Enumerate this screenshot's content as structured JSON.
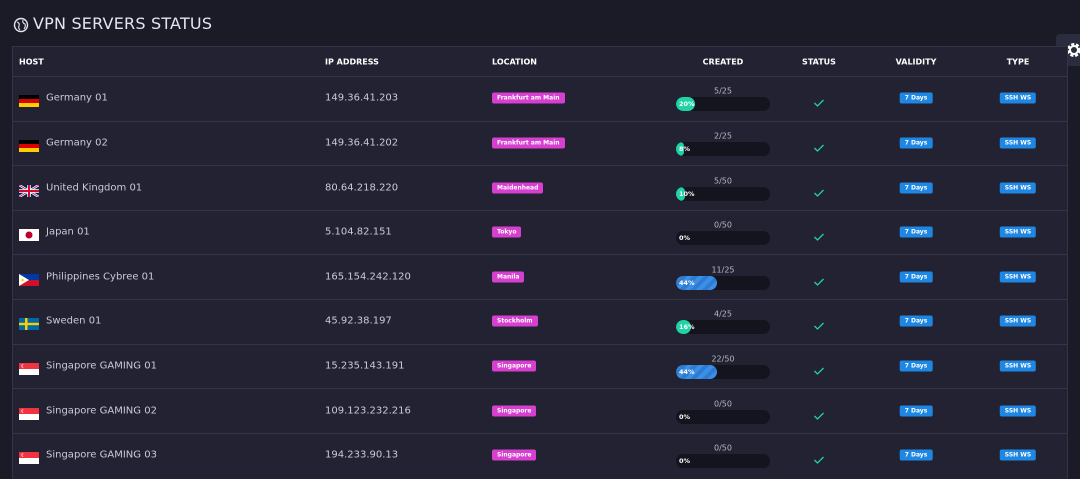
{
  "header": {
    "title": "VPN SERVERS STATUS"
  },
  "table": {
    "columns": [
      "HOST",
      "IP ADDRESS",
      "LOCATION",
      "CREATED",
      "STATUS",
      "VALIDITY",
      "TYPE"
    ],
    "rows": [
      {
        "host": "Germany 01",
        "ip": "149.36.41.203",
        "location": "Frankfurt am Main",
        "created": "5/25",
        "progress": {
          "value": 20,
          "label": "20%"
        },
        "validity": "7 Days",
        "type": "SSH WS"
      },
      {
        "host": "Germany 02",
        "ip": "149.36.41.202",
        "location": "Frankfurt am Main",
        "created": "2/25",
        "progress": {
          "value": 8,
          "label": "8%"
        },
        "validity": "7 Days",
        "type": "SSH WS"
      },
      {
        "host": "United Kingdom 01",
        "ip": "80.64.218.220",
        "location": "Maidenhead",
        "created": "5/50",
        "progress": {
          "value": 10,
          "label": "10%"
        },
        "validity": "7 Days",
        "type": "SSH WS"
      },
      {
        "host": "Japan 01",
        "ip": "5.104.82.151",
        "location": "Tokyo",
        "created": "0/50",
        "progress": {
          "value": 0,
          "label": "0%"
        },
        "validity": "7 Days",
        "type": "SSH WS"
      },
      {
        "host": "Philippines Cybree 01",
        "ip": "165.154.242.120",
        "location": "Manila",
        "created": "11/25",
        "progress": {
          "value": 44,
          "label": "44%"
        },
        "validity": "7 Days",
        "type": "SSH WS"
      },
      {
        "host": "Sweden 01",
        "ip": "45.92.38.197",
        "location": "Stockholm",
        "created": "4/25",
        "progress": {
          "value": 16,
          "label": "16%"
        },
        "validity": "7 Days",
        "type": "SSH WS"
      },
      {
        "host": "Singapore GAMING 01",
        "ip": "15.235.143.191",
        "location": "Singapore",
        "created": "22/50",
        "progress": {
          "value": 44,
          "label": "44%"
        },
        "validity": "7 Days",
        "type": "SSH WS"
      },
      {
        "host": "Singapore GAMING 02",
        "ip": "109.123.232.216",
        "location": "Singapore",
        "created": "0/50",
        "progress": {
          "value": 0,
          "label": "0%"
        },
        "validity": "7 Days",
        "type": "SSH WS"
      },
      {
        "host": "Singapore GAMING 03",
        "ip": "194.233.90.13",
        "location": "Singapore",
        "created": "0/50",
        "progress": {
          "value": 0,
          "label": "0%"
        },
        "validity": "7 Days",
        "type": "SSH WS"
      }
    ]
  }
}
